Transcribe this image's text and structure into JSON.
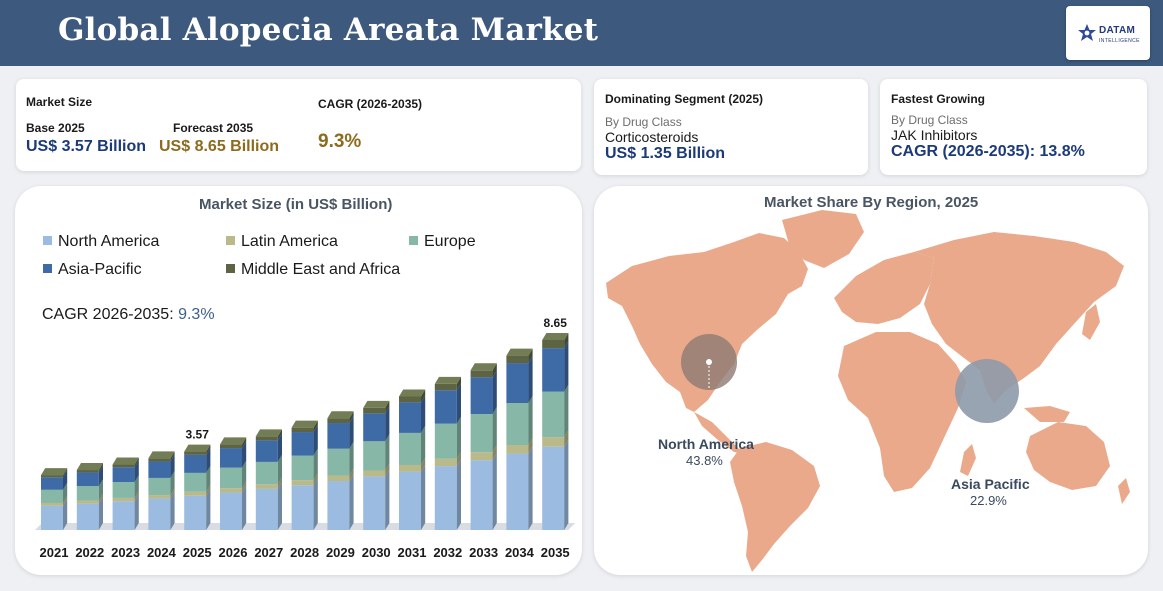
{
  "header": {
    "title": "Global Alopecia Areata Market"
  },
  "logo": {
    "name": "DATAM",
    "sub": "INTELLIGENCE"
  },
  "market_size": {
    "label": "Market Size",
    "base_label": "Base 2025",
    "base_value": "US$ 3.57 Billion",
    "forecast_label": "Forecast 2035",
    "forecast_value": "US$ 8.65 Billion",
    "cagr_label": "CAGR (2026-2035)",
    "cagr_value": "9.3%"
  },
  "dominating": {
    "label": "Dominating Segment (2025)",
    "sub": "By Drug Class",
    "name": "Corticosteroids",
    "value": "US$ 1.35 Billion"
  },
  "fastest": {
    "label": "Fastest Growing",
    "sub": "By Drug Class",
    "name": "JAK Inhibitors",
    "value": "CAGR (2026-2035): 13.8%"
  },
  "bar_panel": {
    "title": "Market Size (in US$ Billion)",
    "cagr_prefix": "CAGR 2026-2035: ",
    "cagr_value": "9.3%"
  },
  "map_panel": {
    "title": "Market Share By Region, 2025",
    "regions": [
      {
        "name": "North America",
        "share": "43.8%"
      },
      {
        "name": "Asia Pacific",
        "share": "22.9%"
      }
    ]
  },
  "colors": {
    "north_america": "#9cbbe0",
    "latin_america": "#b9b98a",
    "europe": "#87b8a7",
    "asia_pacific": "#3e6ba6",
    "middle_east_africa": "#5c6444",
    "header": "#3d5a7e",
    "map_land": "#e9a98a"
  },
  "chart_data": {
    "type": "bar",
    "stacked": true,
    "title": "Market Size (in US$ Billion)",
    "categories": [
      "2021",
      "2022",
      "2023",
      "2024",
      "2025",
      "2026",
      "2027",
      "2028",
      "2029",
      "2030",
      "2031",
      "2032",
      "2033",
      "2034",
      "2035"
    ],
    "totals": [
      2.5,
      2.73,
      2.98,
      3.26,
      3.57,
      3.9,
      4.26,
      4.66,
      5.09,
      5.56,
      6.08,
      6.65,
      7.27,
      7.94,
      8.65
    ],
    "series": [
      {
        "name": "North America",
        "values": [
          1.1,
          1.2,
          1.31,
          1.43,
          1.56,
          1.71,
          1.87,
          2.04,
          2.23,
          2.44,
          2.66,
          2.91,
          3.18,
          3.48,
          3.79
        ]
      },
      {
        "name": "Latin America",
        "values": [
          0.13,
          0.14,
          0.15,
          0.16,
          0.18,
          0.19,
          0.21,
          0.23,
          0.25,
          0.27,
          0.3,
          0.33,
          0.36,
          0.39,
          0.43
        ]
      },
      {
        "name": "Europe",
        "values": [
          0.6,
          0.66,
          0.72,
          0.78,
          0.86,
          0.94,
          1.02,
          1.12,
          1.22,
          1.33,
          1.46,
          1.6,
          1.74,
          1.91,
          2.08
        ]
      },
      {
        "name": "Asia-Pacific",
        "values": [
          0.57,
          0.62,
          0.68,
          0.75,
          0.82,
          0.89,
          0.98,
          1.07,
          1.17,
          1.27,
          1.39,
          1.52,
          1.67,
          1.82,
          1.98
        ]
      },
      {
        "name": "Middle East and Africa",
        "values": [
          0.1,
          0.11,
          0.12,
          0.14,
          0.15,
          0.17,
          0.18,
          0.2,
          0.22,
          0.25,
          0.27,
          0.29,
          0.32,
          0.34,
          0.37
        ]
      }
    ],
    "data_labels": [
      {
        "category": "2025",
        "text": "3.57"
      },
      {
        "category": "2035",
        "text": "8.65"
      }
    ],
    "ylim": [
      0,
      8.65
    ],
    "legend_position": "top",
    "grid": false
  }
}
